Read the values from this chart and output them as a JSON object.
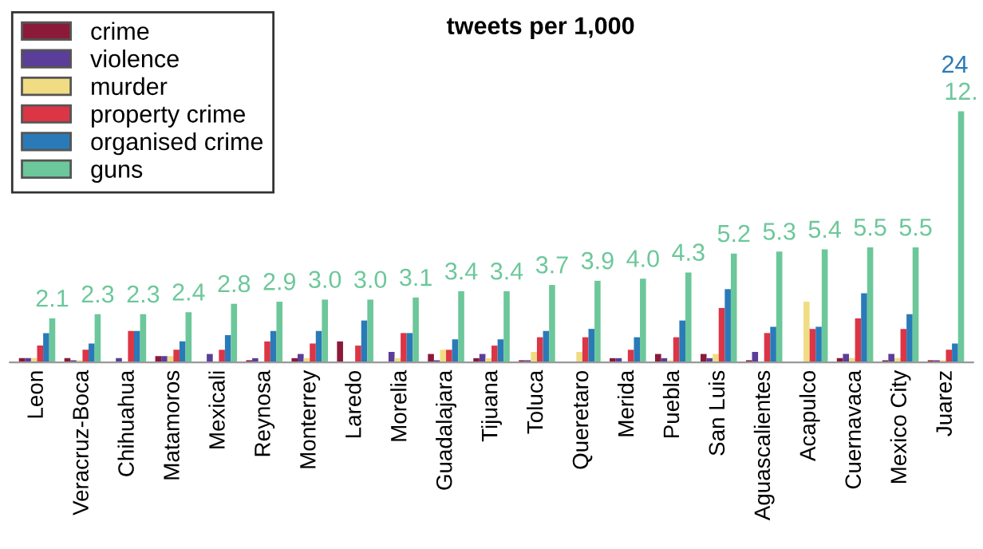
{
  "chart_data": {
    "type": "bar",
    "title": "tweets per 1,000",
    "legend": "top left",
    "grid": false,
    "tick_labels": "x",
    "categories": [
      "Leon",
      "Veracruz-Boca",
      "Chihuahua",
      "Matamoros",
      "Mexicali",
      "Reynosa",
      "Monterrey",
      "Laredo",
      "Morelia",
      "Guadalajara",
      "Tijuana",
      "Toluca",
      "Queretaro",
      "Merida",
      "Puebla",
      "San Luis",
      "Aguascalientes",
      "Acapulco",
      "Cuernavaca",
      "Mexico City",
      "Juarez"
    ],
    "series": [
      {
        "name": "crime",
        "color": "#8b1a3a",
        "values": [
          0.2,
          0.2,
          0,
          0.3,
          0,
          0.1,
          0.2,
          1.0,
          0,
          0.4,
          0.2,
          0.1,
          0,
          0.2,
          0.4,
          0.4,
          0.1,
          0,
          0.2,
          0.1,
          0.1
        ]
      },
      {
        "name": "violence",
        "color": "#5b3e9a",
        "values": [
          0.2,
          0.1,
          0.2,
          0.3,
          0.4,
          0.2,
          0.4,
          0,
          0.5,
          0.1,
          0.4,
          0.1,
          0,
          0.2,
          0.2,
          0.2,
          0.5,
          0,
          0.4,
          0.4,
          0.1
        ]
      },
      {
        "name": "murder",
        "color": "#f0dc82",
        "values": [
          0.2,
          0.1,
          0,
          0.3,
          0,
          0,
          0.2,
          0,
          0.2,
          0.6,
          0.2,
          0.5,
          0.5,
          0,
          0.1,
          0.4,
          0,
          2.9,
          0.2,
          0.2,
          0.1
        ]
      },
      {
        "name": "property crime",
        "color": "#dc3545",
        "values": [
          0.8,
          0.6,
          1.5,
          0.6,
          0.6,
          1.0,
          0.9,
          0.8,
          1.4,
          0.6,
          0.8,
          1.2,
          1.2,
          0.6,
          1.2,
          2.6,
          1.4,
          1.6,
          2.1,
          1.6,
          0.6
        ]
      },
      {
        "name": "organised crime",
        "color": "#2a7ab8",
        "values": [
          1.4,
          0.9,
          1.5,
          1.0,
          1.3,
          1.5,
          1.5,
          2.0,
          1.4,
          1.1,
          1.1,
          1.5,
          1.6,
          1.2,
          2.0,
          3.5,
          1.7,
          1.7,
          3.3,
          2.3,
          0.9
        ]
      },
      {
        "name": "guns",
        "color": "#6cc79a",
        "values": [
          2.1,
          2.3,
          2.3,
          2.4,
          2.8,
          2.9,
          3.0,
          3.0,
          3.1,
          3.4,
          3.4,
          3.7,
          3.9,
          4.0,
          4.3,
          5.2,
          5.3,
          5.4,
          5.5,
          5.5,
          12
        ],
        "value_labels": [
          "2.1",
          "2.3",
          "2.3",
          "2.4",
          "2.8",
          "2.9",
          "3.0",
          "3.0",
          "3.1",
          "3.4",
          "3.4",
          "3.7",
          "3.9",
          "4.0",
          "4.3",
          "5.2",
          "5.3",
          "5.4",
          "5.5",
          "5.5",
          "12."
        ]
      }
    ],
    "annotations": [
      "24"
    ]
  }
}
